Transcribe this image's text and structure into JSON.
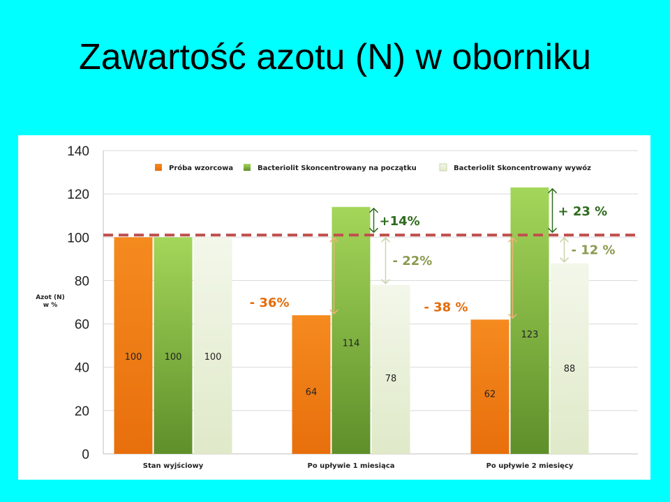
{
  "slide": {
    "title": "Zawartość azotu (N) w oborniku"
  },
  "colors": {
    "background": "#00ffff",
    "series": [
      "#f07e18",
      "#7fb02e",
      "#e6efd3"
    ],
    "reference_line": "#c0504d",
    "pct_orange": "#e46c0a",
    "pct_darkgreen": "#2e6b1e",
    "pct_olive": "#8a9a50",
    "arrow_orange": "#f3b07a",
    "arrow_green": "#2e6b1e",
    "arrow_olive": "#c9d3a8"
  },
  "chart_data": {
    "type": "bar",
    "ylabel": "Azot (N)\nw %",
    "ylim": [
      0,
      140
    ],
    "yticks": [
      0,
      20,
      40,
      60,
      80,
      100,
      120,
      140
    ],
    "grid": true,
    "legend_position": "top",
    "categories": [
      "Stan wyjściowy",
      "Po upływie 1 miesiąca",
      "Po upływie 2 miesięcy"
    ],
    "series": [
      {
        "name": "Próba wzorcowa",
        "values": [
          100,
          64,
          62
        ]
      },
      {
        "name": "Bacteriolit Skoncentrowany na początku",
        "values": [
          100,
          114,
          123
        ]
      },
      {
        "name": "Bacteriolit Skoncentrowany wywóz",
        "values": [
          100,
          78,
          88
        ]
      }
    ],
    "reference_line": 101,
    "annotations": [
      {
        "text": "- 36%",
        "category": 1,
        "series": 0,
        "color": "pct_orange"
      },
      {
        "text": "+14%",
        "category": 1,
        "series": 1,
        "color": "pct_darkgreen"
      },
      {
        "text": "- 22%",
        "category": 1,
        "series": 2,
        "color": "pct_olive"
      },
      {
        "text": "- 38 %",
        "category": 2,
        "series": 0,
        "color": "pct_orange"
      },
      {
        "text": "+ 23 %",
        "category": 2,
        "series": 1,
        "color": "pct_darkgreen"
      },
      {
        "text": "- 12 %",
        "category": 2,
        "series": 2,
        "color": "pct_olive"
      }
    ]
  }
}
